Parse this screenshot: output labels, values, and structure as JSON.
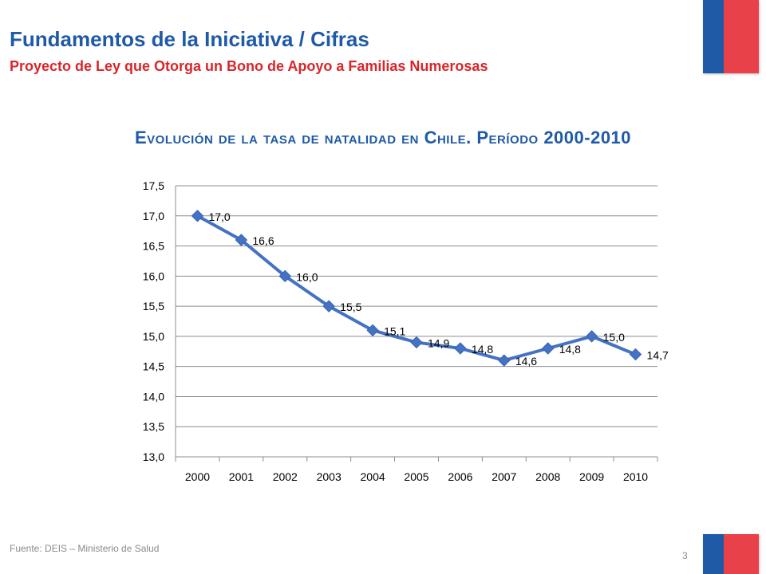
{
  "header": {
    "title": "Fundamentos de la Iniciativa / Cifras",
    "subtitle": "Proyecto de Ley que Otorga un Bono de Apoyo a Familias Numerosas"
  },
  "footer": {
    "source": "Fuente: DEIS – Ministerio de Salud",
    "page_number": "3"
  },
  "colors": {
    "title": "#1f5aa6",
    "subtitle": "#d9262a",
    "series": "#4472c4",
    "flag_blue": "#1f5aa6",
    "flag_red": "#e8414a"
  },
  "chart_data": {
    "type": "line",
    "title": "Evolución de la tasa de natalidad en Chile. Período 2000-2010",
    "x": [
      "2000",
      "2001",
      "2002",
      "2003",
      "2004",
      "2005",
      "2006",
      "2007",
      "2008",
      "2009",
      "2010"
    ],
    "series": [
      {
        "values": [
          17.0,
          16.6,
          16.0,
          15.5,
          15.1,
          14.9,
          14.8,
          14.6,
          14.8,
          15.0,
          14.7
        ]
      }
    ],
    "data_labels": [
      "17,0",
      "16,6",
      "16,0",
      "15,5",
      "15,1",
      "14,9",
      "14,8",
      "14,6",
      "14,8",
      "15,0",
      "14,7"
    ],
    "ylim": [
      13.0,
      17.5
    ],
    "yticks": [
      "13,0",
      "13,5",
      "14,0",
      "14,5",
      "15,0",
      "15,5",
      "16,0",
      "16,5",
      "17,0",
      "17,5"
    ],
    "grid": true,
    "marker": "diamond",
    "legend": "none"
  }
}
